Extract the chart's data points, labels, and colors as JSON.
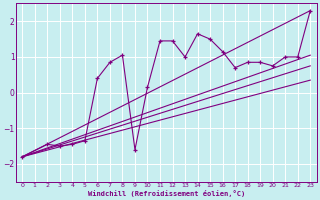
{
  "xlabel": "Windchill (Refroidissement éolien,°C)",
  "xlim": [
    -0.5,
    23.5
  ],
  "ylim": [
    -2.5,
    2.5
  ],
  "xticks": [
    0,
    1,
    2,
    3,
    4,
    5,
    6,
    7,
    8,
    9,
    10,
    11,
    12,
    13,
    14,
    15,
    16,
    17,
    18,
    19,
    20,
    21,
    22,
    23
  ],
  "yticks": [
    -2,
    -1,
    0,
    1,
    2
  ],
  "bg_color": "#c8eef0",
  "line_color": "#800080",
  "grid_color": "#ffffff",
  "data_x": [
    0,
    2,
    3,
    4,
    5,
    6,
    7,
    8,
    9,
    10,
    11,
    12,
    13,
    14,
    15,
    16,
    17,
    18,
    19,
    20,
    21,
    22,
    23
  ],
  "data_y": [
    -1.8,
    -1.45,
    -1.5,
    -1.45,
    -1.35,
    0.4,
    0.85,
    1.05,
    -1.6,
    0.15,
    1.45,
    1.45,
    1.0,
    1.65,
    1.5,
    1.15,
    0.7,
    0.85,
    0.85,
    0.75,
    1.0,
    1.0,
    2.3
  ],
  "trend_lines": [
    {
      "x": [
        0,
        23
      ],
      "y": [
        -1.8,
        2.3
      ]
    },
    {
      "x": [
        0,
        23
      ],
      "y": [
        -1.8,
        1.05
      ]
    },
    {
      "x": [
        0,
        23
      ],
      "y": [
        -1.8,
        0.75
      ]
    },
    {
      "x": [
        0,
        23
      ],
      "y": [
        -1.8,
        0.35
      ]
    }
  ]
}
